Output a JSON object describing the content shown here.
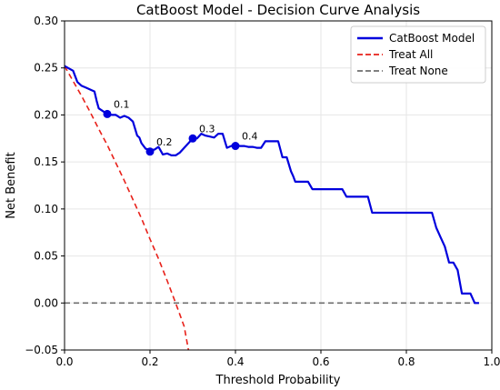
{
  "chart_data": {
    "type": "line",
    "title": "CatBoost Model - Decision Curve Analysis",
    "xlabel": "Threshold Probability",
    "ylabel": "Net Benefit",
    "xlim": [
      0.0,
      1.0
    ],
    "ylim": [
      -0.05,
      0.3
    ],
    "xticks": [
      "0.0",
      "0.2",
      "0.4",
      "0.6",
      "0.8",
      "1.0"
    ],
    "yticks": [
      "−0.05",
      "0.00",
      "0.05",
      "0.10",
      "0.15",
      "0.20",
      "0.25",
      "0.30"
    ],
    "grid": true,
    "legend_position": "top-right",
    "series": [
      {
        "name": "CatBoost Model",
        "color": "#0000dd",
        "style": "solid",
        "x": [
          0.0,
          0.02,
          0.03,
          0.04,
          0.05,
          0.06,
          0.07,
          0.075,
          0.08,
          0.09,
          0.1,
          0.11,
          0.12,
          0.13,
          0.14,
          0.15,
          0.16,
          0.17,
          0.175,
          0.18,
          0.19,
          0.2,
          0.21,
          0.22,
          0.23,
          0.24,
          0.25,
          0.26,
          0.27,
          0.28,
          0.29,
          0.3,
          0.31,
          0.32,
          0.33,
          0.34,
          0.35,
          0.36,
          0.37,
          0.38,
          0.39,
          0.4,
          0.41,
          0.42,
          0.43,
          0.44,
          0.45,
          0.46,
          0.47,
          0.48,
          0.49,
          0.5,
          0.51,
          0.515,
          0.52,
          0.53,
          0.535,
          0.54,
          0.55,
          0.56,
          0.57,
          0.58,
          0.59,
          0.6,
          0.61,
          0.62,
          0.63,
          0.64,
          0.65,
          0.66,
          0.67,
          0.68,
          0.69,
          0.7,
          0.71,
          0.72,
          0.73,
          0.74,
          0.75,
          0.76,
          0.77,
          0.78,
          0.79,
          0.8,
          0.81,
          0.82,
          0.83,
          0.84,
          0.85,
          0.86,
          0.87,
          0.88,
          0.89,
          0.9,
          0.91,
          0.92,
          0.93,
          0.94,
          0.95,
          0.96,
          0.97
        ],
        "y": [
          0.252,
          0.247,
          0.235,
          0.231,
          0.229,
          0.227,
          0.225,
          0.215,
          0.207,
          0.204,
          0.201,
          0.2,
          0.2,
          0.197,
          0.199,
          0.197,
          0.193,
          0.178,
          0.176,
          0.17,
          0.164,
          0.163,
          0.163,
          0.166,
          0.158,
          0.159,
          0.157,
          0.157,
          0.16,
          0.165,
          0.17,
          0.175,
          0.175,
          0.18,
          0.178,
          0.177,
          0.176,
          0.18,
          0.18,
          0.165,
          0.167,
          0.168,
          0.167,
          0.167,
          0.166,
          0.166,
          0.165,
          0.165,
          0.172,
          0.172,
          0.172,
          0.172,
          0.155,
          0.155,
          0.155,
          0.14,
          0.135,
          0.129,
          0.129,
          0.129,
          0.129,
          0.121,
          0.121,
          0.121,
          0.121,
          0.121,
          0.121,
          0.121,
          0.121,
          0.113,
          0.113,
          0.113,
          0.113,
          0.113,
          0.113,
          0.096,
          0.096,
          0.096,
          0.096,
          0.096,
          0.096,
          0.096,
          0.096,
          0.096,
          0.096,
          0.096,
          0.096,
          0.096,
          0.096,
          0.096,
          0.08,
          0.07,
          0.06,
          0.043,
          0.043,
          0.035,
          0.01,
          0.01,
          0.01,
          0.0,
          0.0
        ]
      },
      {
        "name": "Treat All",
        "color": "#e8211a",
        "style": "dashed",
        "x": [
          0.0,
          0.02,
          0.04,
          0.06,
          0.08,
          0.1,
          0.12,
          0.14,
          0.16,
          0.18,
          0.2,
          0.22,
          0.24,
          0.26,
          0.28,
          0.29
        ],
        "y": [
          0.252,
          0.236,
          0.22,
          0.203,
          0.185,
          0.168,
          0.149,
          0.13,
          0.11,
          0.09,
          0.068,
          0.047,
          0.024,
          0.0,
          -0.025,
          -0.05
        ]
      },
      {
        "name": "Treat None",
        "color": "#6e6e6e",
        "style": "dashed",
        "x": [
          0.0,
          0.97
        ],
        "y": [
          0.0,
          0.0
        ]
      }
    ],
    "markers": [
      {
        "x": 0.1,
        "y": 0.201,
        "label": "0.1"
      },
      {
        "x": 0.2,
        "y": 0.161,
        "label": "0.2"
      },
      {
        "x": 0.3,
        "y": 0.175,
        "label": "0.3"
      },
      {
        "x": 0.4,
        "y": 0.167,
        "label": "0.4"
      }
    ]
  }
}
